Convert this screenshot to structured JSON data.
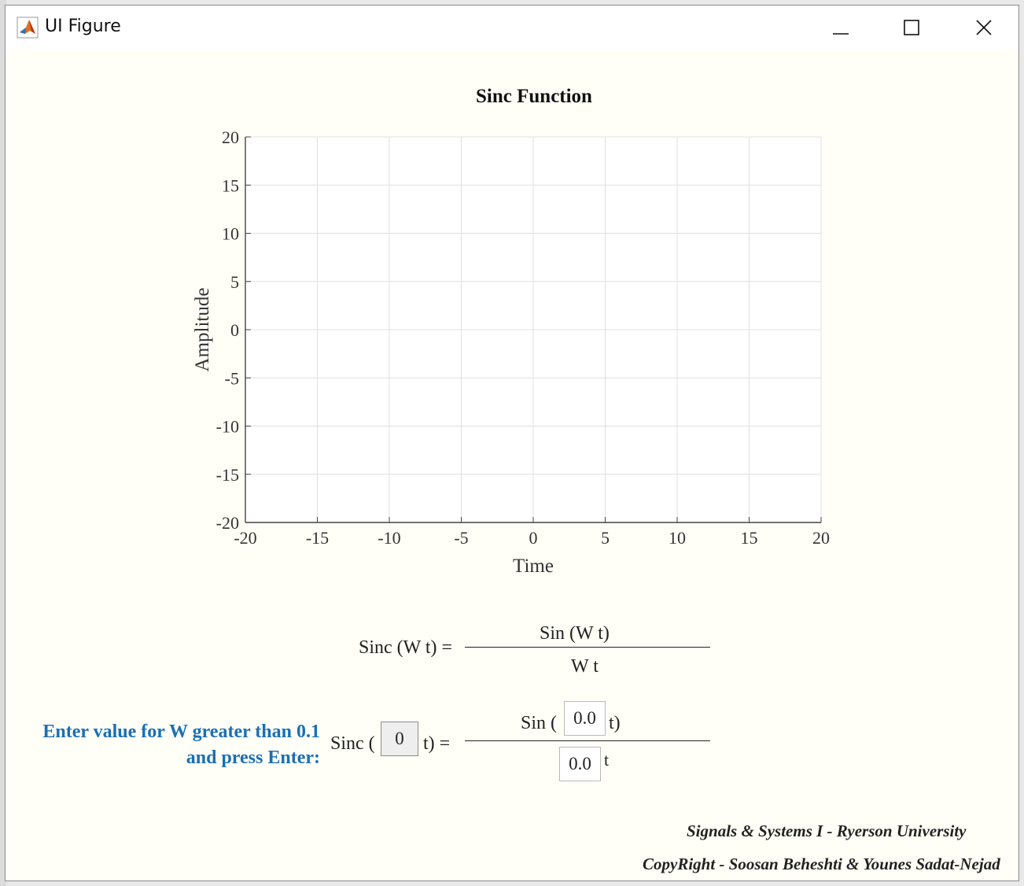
{
  "window": {
    "title": "UI Figure",
    "icon": "matlab-icon",
    "controls": [
      "minimize-icon",
      "maximize-icon",
      "close-icon"
    ]
  },
  "chart_data": {
    "type": "line",
    "title": "Sinc Function",
    "xlabel": "Time",
    "ylabel": "Amplitude",
    "xlim": [
      -20,
      20
    ],
    "ylim": [
      -20,
      20
    ],
    "xticks": [
      "-20",
      "-15",
      "-10",
      "-5",
      "0",
      "5",
      "10",
      "15",
      "20"
    ],
    "yticks": [
      "20",
      "15",
      "10",
      "5",
      "0",
      "-5",
      "-10",
      "-15",
      "-20"
    ],
    "grid": true,
    "series": []
  },
  "formula": {
    "lhs": "Sinc (W t) =",
    "numerator": "Sin (W t)",
    "denominator": "W t"
  },
  "input_row": {
    "prompt_line1": "Enter value for W greater than 0.1",
    "prompt_line2": "and press Enter:",
    "sinc_open": "Sinc (",
    "sinc_close": "t) =",
    "w_value": "0",
    "sin_open": "Sin (",
    "sin_close": "t)",
    "numerator_value": "0.0",
    "denominator_value": "0.0",
    "denominator_suffix": "t"
  },
  "footer": {
    "line1": "Signals & Systems I - Ryerson University",
    "line2": "CopyRight - Soosan Beheshti & Younes Sadat-Nejad"
  },
  "colors": {
    "background": "#fffff7",
    "prompt": "#1b6fb4",
    "grid": "#e0e0e0"
  }
}
